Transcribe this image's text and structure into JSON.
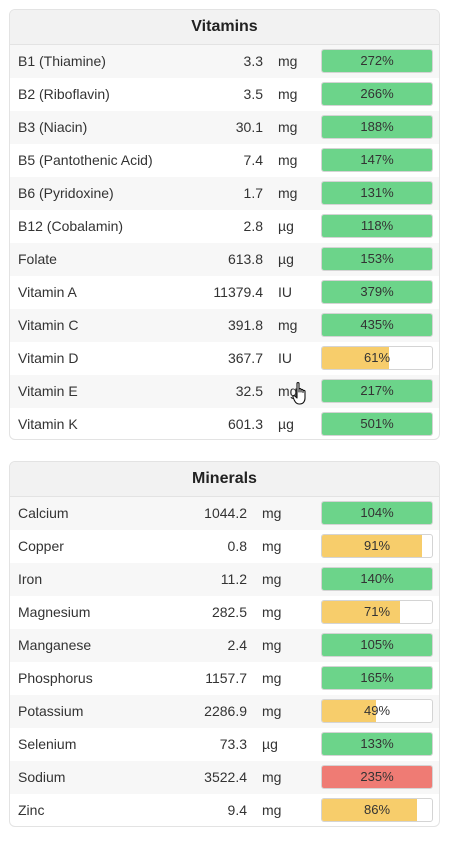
{
  "colors": {
    "green": "#6cd48a",
    "yellow": "#f7cd6b",
    "red": "#ef7b74"
  },
  "vitamins": {
    "title": "Vitamins",
    "rows": [
      {
        "name": "B1 (Thiamine)",
        "amount": "3.3",
        "unit": "mg",
        "percent": "272%",
        "fill": 1.0,
        "status": "green"
      },
      {
        "name": "B2 (Riboflavin)",
        "amount": "3.5",
        "unit": "mg",
        "percent": "266%",
        "fill": 1.0,
        "status": "green"
      },
      {
        "name": "B3 (Niacin)",
        "amount": "30.1",
        "unit": "mg",
        "percent": "188%",
        "fill": 1.0,
        "status": "green"
      },
      {
        "name": "B5 (Pantothenic Acid)",
        "amount": "7.4",
        "unit": "mg",
        "percent": "147%",
        "fill": 1.0,
        "status": "green"
      },
      {
        "name": "B6 (Pyridoxine)",
        "amount": "1.7",
        "unit": "mg",
        "percent": "131%",
        "fill": 1.0,
        "status": "green"
      },
      {
        "name": "B12 (Cobalamin)",
        "amount": "2.8",
        "unit": "µg",
        "percent": "118%",
        "fill": 1.0,
        "status": "green"
      },
      {
        "name": "Folate",
        "amount": "613.8",
        "unit": "µg",
        "percent": "153%",
        "fill": 1.0,
        "status": "green"
      },
      {
        "name": "Vitamin A",
        "amount": "11379.4",
        "unit": "IU",
        "percent": "379%",
        "fill": 1.0,
        "status": "green"
      },
      {
        "name": "Vitamin C",
        "amount": "391.8",
        "unit": "mg",
        "percent": "435%",
        "fill": 1.0,
        "status": "green"
      },
      {
        "name": "Vitamin D",
        "amount": "367.7",
        "unit": "IU",
        "percent": "61%",
        "fill": 0.61,
        "status": "yellow"
      },
      {
        "name": "Vitamin E",
        "amount": "32.5",
        "unit": "mg",
        "percent": "217%",
        "fill": 1.0,
        "status": "green"
      },
      {
        "name": "Vitamin K",
        "amount": "601.3",
        "unit": "µg",
        "percent": "501%",
        "fill": 1.0,
        "status": "green"
      }
    ]
  },
  "minerals": {
    "title": "Minerals",
    "rows": [
      {
        "name": "Calcium",
        "amount": "1044.2",
        "unit": "mg",
        "percent": "104%",
        "fill": 1.0,
        "status": "green"
      },
      {
        "name": "Copper",
        "amount": "0.8",
        "unit": "mg",
        "percent": "91%",
        "fill": 0.91,
        "status": "yellow"
      },
      {
        "name": "Iron",
        "amount": "11.2",
        "unit": "mg",
        "percent": "140%",
        "fill": 1.0,
        "status": "green"
      },
      {
        "name": "Magnesium",
        "amount": "282.5",
        "unit": "mg",
        "percent": "71%",
        "fill": 0.71,
        "status": "yellow"
      },
      {
        "name": "Manganese",
        "amount": "2.4",
        "unit": "mg",
        "percent": "105%",
        "fill": 1.0,
        "status": "green"
      },
      {
        "name": "Phosphorus",
        "amount": "1157.7",
        "unit": "mg",
        "percent": "165%",
        "fill": 1.0,
        "status": "green"
      },
      {
        "name": "Potassium",
        "amount": "2286.9",
        "unit": "mg",
        "percent": "49%",
        "fill": 0.49,
        "status": "yellow"
      },
      {
        "name": "Selenium",
        "amount": "73.3",
        "unit": "µg",
        "percent": "133%",
        "fill": 1.0,
        "status": "green"
      },
      {
        "name": "Sodium",
        "amount": "3522.4",
        "unit": "mg",
        "percent": "235%",
        "fill": 1.0,
        "status": "red"
      },
      {
        "name": "Zinc",
        "amount": "9.4",
        "unit": "mg",
        "percent": "86%",
        "fill": 0.86,
        "status": "yellow"
      }
    ]
  },
  "cursor": {
    "icon": "hand-pointer-icon"
  }
}
